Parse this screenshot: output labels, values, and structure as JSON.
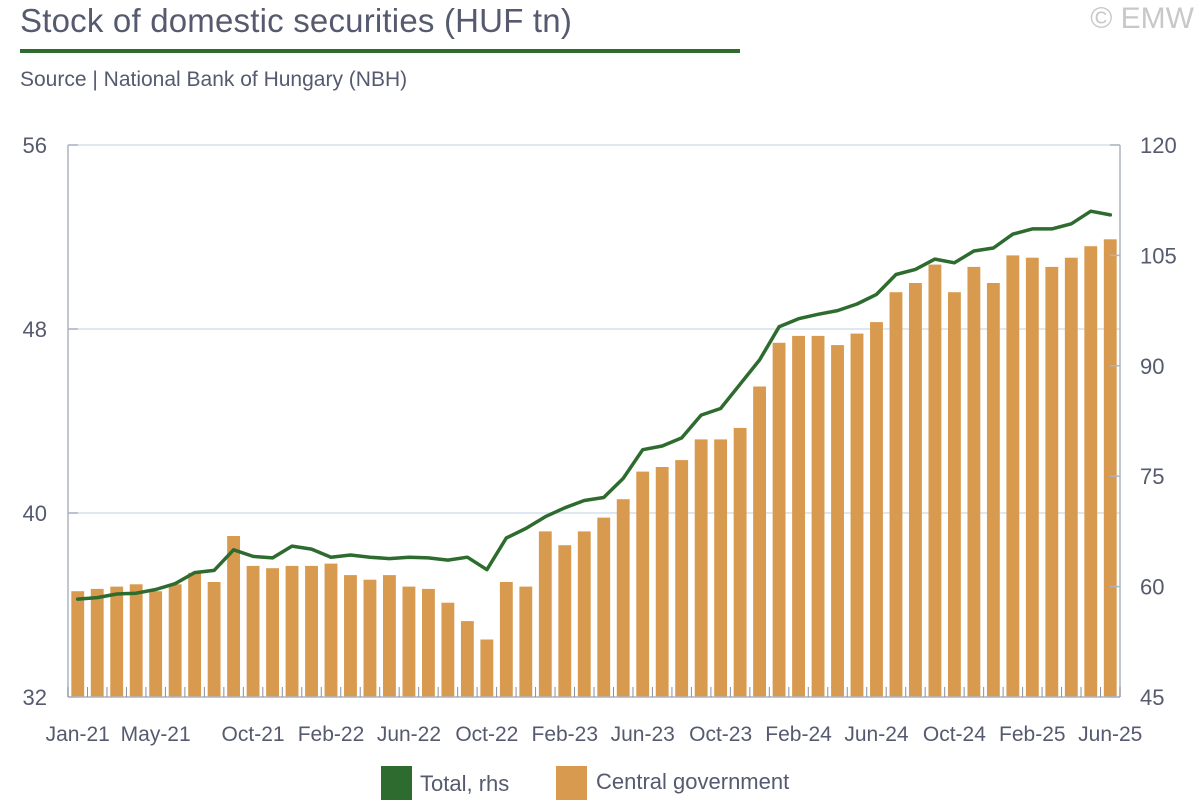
{
  "header": {
    "title": "Stock of domestic securities (HUF tn)",
    "copyright": "© EMW",
    "source": "Source | National Bank of Hungary (NBH)"
  },
  "colors": {
    "bar": "#d89a4e",
    "line": "#2e6b2e",
    "grid": "#d4e0ec",
    "text": "#555a6e"
  },
  "chart_data": {
    "type": "bar",
    "x_tick_labels": [
      "Jan-21",
      "May-21",
      "Oct-21",
      "Feb-22",
      "Jun-22",
      "Oct-22",
      "Feb-23",
      "Jun-23",
      "Oct-23",
      "Feb-24",
      "Jun-24",
      "Oct-24",
      "Feb-25",
      "Jun-25"
    ],
    "x_tick_index": [
      0,
      4,
      9,
      13,
      17,
      21,
      25,
      29,
      33,
      37,
      41,
      45,
      49,
      53
    ],
    "y_left": {
      "min": 32,
      "max": 56,
      "ticks": [
        32,
        40,
        48,
        56
      ]
    },
    "y_right": {
      "min": 45,
      "max": 120,
      "ticks": [
        45,
        60,
        75,
        90,
        105,
        120
      ]
    },
    "grid": true,
    "legend_position": "bottom-center",
    "series": [
      {
        "name": "Central government",
        "type": "bar",
        "axis": "left",
        "values": [
          36.6,
          36.7,
          36.8,
          36.9,
          36.6,
          36.9,
          37.4,
          37.0,
          39.0,
          37.7,
          37.6,
          37.7,
          37.7,
          37.8,
          37.3,
          37.1,
          37.3,
          36.8,
          36.7,
          36.1,
          35.3,
          34.5,
          37.0,
          36.8,
          39.2,
          38.6,
          39.2,
          39.8,
          40.6,
          41.8,
          42.0,
          42.3,
          43.2,
          43.2,
          43.7,
          45.5,
          47.4,
          47.7,
          47.7,
          47.3,
          47.8,
          48.3,
          49.6,
          50.0,
          50.8,
          49.6,
          50.7,
          50.0,
          51.2,
          51.1,
          50.7,
          51.1,
          51.6,
          51.9
        ]
      },
      {
        "name": "Total, rhs",
        "type": "line",
        "axis": "right",
        "values": [
          58.3,
          58.5,
          59.0,
          59.1,
          59.6,
          60.4,
          61.9,
          62.2,
          65.0,
          64.1,
          63.9,
          65.5,
          65.1,
          64.0,
          64.3,
          64.0,
          63.8,
          64.0,
          63.9,
          63.6,
          64.0,
          62.3,
          66.6,
          67.9,
          69.5,
          70.7,
          71.7,
          72.1,
          74.7,
          78.6,
          79.1,
          80.2,
          83.3,
          84.2,
          87.5,
          90.8,
          95.3,
          96.4,
          97.0,
          97.5,
          98.4,
          99.7,
          102.4,
          103.1,
          104.5,
          104.0,
          105.6,
          106.0,
          107.9,
          108.6,
          108.6,
          109.3,
          111.0,
          110.5
        ]
      }
    ]
  }
}
